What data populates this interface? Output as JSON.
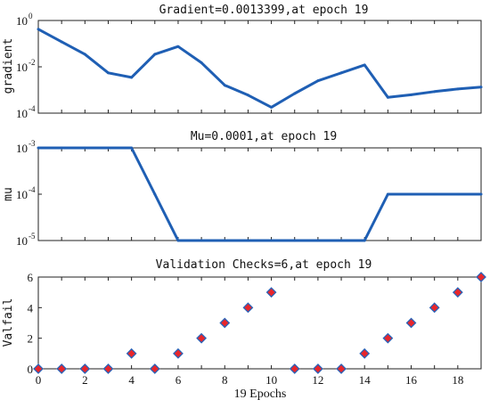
{
  "colors": {
    "line": "#1f5fb4",
    "marker_fill": "#e8262b",
    "marker_edge": "#2a63b8",
    "axis": "#222222"
  },
  "chart_data": [
    {
      "type": "line",
      "title": "Gradient=0.0013399,at epoch 19",
      "ylabel": "gradient",
      "yscale": "log",
      "ylim": [
        0.0001,
        1
      ],
      "yticks": [
        {
          "base": "10",
          "exp": "0"
        },
        {
          "base": "10",
          "exp": "-2"
        },
        {
          "base": "10",
          "exp": "-4"
        }
      ],
      "x": [
        0,
        1,
        2,
        3,
        4,
        5,
        6,
        7,
        8,
        9,
        10,
        11,
        12,
        13,
        14,
        15,
        16,
        17,
        18,
        19
      ],
      "values": [
        0.42,
        0.12,
        0.035,
        0.0055,
        0.0035,
        0.035,
        0.075,
        0.015,
        0.0016,
        0.0006,
        0.00018,
        0.0007,
        0.0025,
        0.0055,
        0.012,
        0.00048,
        0.00062,
        0.00085,
        0.0011,
        0.0013399
      ]
    },
    {
      "type": "line",
      "title": "Mu=0.0001,at epoch 19",
      "ylabel": "mu",
      "yscale": "log",
      "ylim": [
        1e-05,
        0.001
      ],
      "yticks": [
        {
          "base": "10",
          "exp": "-3"
        },
        {
          "base": "10",
          "exp": "-4"
        },
        {
          "base": "10",
          "exp": "-5"
        }
      ],
      "x": [
        0,
        1,
        2,
        3,
        4,
        5,
        6,
        7,
        8,
        9,
        10,
        11,
        12,
        13,
        14,
        15,
        16,
        17,
        18,
        19
      ],
      "values": [
        0.001,
        0.001,
        0.001,
        0.001,
        0.001,
        0.0001,
        1e-05,
        1e-05,
        1e-05,
        1e-05,
        1e-05,
        1e-05,
        1e-05,
        1e-05,
        1e-05,
        0.0001,
        0.0001,
        0.0001,
        0.0001,
        0.0001
      ]
    },
    {
      "type": "scatter",
      "title": "Validation Checks=6,at epoch 19",
      "ylabel": "Valfail",
      "xlabel": "19 Epochs",
      "ylim": [
        0,
        6
      ],
      "yticks": [
        "0",
        "2",
        "4",
        "6"
      ],
      "xticks": [
        "0",
        "2",
        "4",
        "6",
        "8",
        "10",
        "12",
        "14",
        "16",
        "18"
      ],
      "x": [
        0,
        1,
        2,
        3,
        4,
        5,
        6,
        7,
        8,
        9,
        10,
        11,
        12,
        13,
        14,
        15,
        16,
        17,
        18,
        19
      ],
      "values": [
        0,
        0,
        0,
        0,
        1,
        0,
        1,
        2,
        3,
        4,
        5,
        0,
        0,
        0,
        1,
        2,
        3,
        4,
        5,
        6
      ]
    }
  ]
}
